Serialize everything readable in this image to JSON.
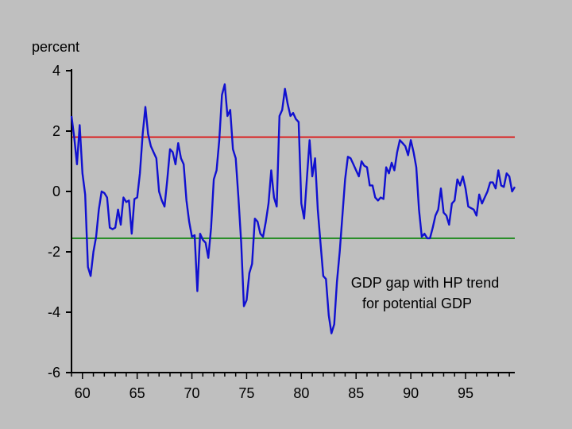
{
  "chart_data": {
    "type": "line",
    "ylabel": "percent",
    "xlim": [
      1959,
      1999.5
    ],
    "ylim": [
      -6,
      4
    ],
    "yticks": [
      4,
      2,
      0,
      -2,
      -4,
      -6
    ],
    "yticklabels": [
      "4",
      "2",
      "0",
      "-2",
      "-4",
      "-6"
    ],
    "xticks": [
      1960,
      1965,
      1970,
      1975,
      1980,
      1985,
      1990,
      1995
    ],
    "xticklabels": [
      "60",
      "65",
      "70",
      "75",
      "80",
      "85",
      "90",
      "95"
    ],
    "annotation": [
      "GDP gap with HP trend",
      "for potential GDP"
    ],
    "reference_lines": [
      {
        "y": 1.8,
        "color": "#e00000"
      },
      {
        "y": -1.55,
        "color": "#008000"
      }
    ],
    "series": [
      {
        "color": "#1010d0",
        "points": [
          [
            1959.0,
            2.5
          ],
          [
            1959.25,
            1.8
          ],
          [
            1959.5,
            0.9
          ],
          [
            1959.75,
            2.2
          ],
          [
            1960.0,
            0.6
          ],
          [
            1960.25,
            -0.1
          ],
          [
            1960.5,
            -2.5
          ],
          [
            1960.75,
            -2.8
          ],
          [
            1961.0,
            -2.0
          ],
          [
            1961.25,
            -1.5
          ],
          [
            1961.5,
            -0.6
          ],
          [
            1961.75,
            0.0
          ],
          [
            1962.0,
            -0.05
          ],
          [
            1962.25,
            -0.2
          ],
          [
            1962.5,
            -1.2
          ],
          [
            1962.75,
            -1.25
          ],
          [
            1963.0,
            -1.2
          ],
          [
            1963.25,
            -0.6
          ],
          [
            1963.5,
            -1.1
          ],
          [
            1963.75,
            -0.2
          ],
          [
            1964.0,
            -0.35
          ],
          [
            1964.25,
            -0.3
          ],
          [
            1964.5,
            -1.4
          ],
          [
            1964.75,
            -0.25
          ],
          [
            1965.0,
            -0.2
          ],
          [
            1965.25,
            0.6
          ],
          [
            1965.5,
            1.9
          ],
          [
            1965.75,
            2.8
          ],
          [
            1966.0,
            1.9
          ],
          [
            1966.25,
            1.5
          ],
          [
            1966.5,
            1.3
          ],
          [
            1966.75,
            1.1
          ],
          [
            1967.0,
            0.0
          ],
          [
            1967.25,
            -0.3
          ],
          [
            1967.5,
            -0.5
          ],
          [
            1967.75,
            0.4
          ],
          [
            1968.0,
            1.4
          ],
          [
            1968.25,
            1.3
          ],
          [
            1968.5,
            0.9
          ],
          [
            1968.75,
            1.6
          ],
          [
            1969.0,
            1.1
          ],
          [
            1969.25,
            0.9
          ],
          [
            1969.5,
            -0.3
          ],
          [
            1969.75,
            -1.0
          ],
          [
            1970.0,
            -1.5
          ],
          [
            1970.25,
            -1.45
          ],
          [
            1970.5,
            -3.3
          ],
          [
            1970.75,
            -1.4
          ],
          [
            1971.0,
            -1.6
          ],
          [
            1971.25,
            -1.7
          ],
          [
            1971.5,
            -2.2
          ],
          [
            1971.75,
            -1.2
          ],
          [
            1972.0,
            0.4
          ],
          [
            1972.25,
            0.7
          ],
          [
            1972.5,
            1.7
          ],
          [
            1972.75,
            3.2
          ],
          [
            1973.0,
            3.55
          ],
          [
            1973.25,
            2.5
          ],
          [
            1973.5,
            2.7
          ],
          [
            1973.75,
            1.4
          ],
          [
            1974.0,
            1.1
          ],
          [
            1974.25,
            -0.2
          ],
          [
            1974.5,
            -1.7
          ],
          [
            1974.75,
            -3.8
          ],
          [
            1975.0,
            -3.6
          ],
          [
            1975.25,
            -2.7
          ],
          [
            1975.5,
            -2.4
          ],
          [
            1975.75,
            -0.9
          ],
          [
            1976.0,
            -1.0
          ],
          [
            1976.25,
            -1.4
          ],
          [
            1976.5,
            -1.5
          ],
          [
            1976.75,
            -1.0
          ],
          [
            1977.0,
            -0.4
          ],
          [
            1977.25,
            0.7
          ],
          [
            1977.5,
            -0.2
          ],
          [
            1977.75,
            -0.5
          ],
          [
            1978.0,
            2.5
          ],
          [
            1978.25,
            2.7
          ],
          [
            1978.5,
            3.4
          ],
          [
            1978.75,
            2.9
          ],
          [
            1979.0,
            2.5
          ],
          [
            1979.25,
            2.6
          ],
          [
            1979.5,
            2.4
          ],
          [
            1979.75,
            2.3
          ],
          [
            1980.0,
            -0.4
          ],
          [
            1980.25,
            -0.9
          ],
          [
            1980.5,
            0.4
          ],
          [
            1980.75,
            1.7
          ],
          [
            1981.0,
            0.5
          ],
          [
            1981.25,
            1.1
          ],
          [
            1981.5,
            -0.6
          ],
          [
            1981.75,
            -1.7
          ],
          [
            1982.0,
            -2.8
          ],
          [
            1982.25,
            -2.9
          ],
          [
            1982.5,
            -4.1
          ],
          [
            1982.75,
            -4.7
          ],
          [
            1983.0,
            -4.4
          ],
          [
            1983.25,
            -3.0
          ],
          [
            1983.5,
            -2.0
          ],
          [
            1983.75,
            -0.8
          ],
          [
            1984.0,
            0.4
          ],
          [
            1984.25,
            1.15
          ],
          [
            1984.5,
            1.1
          ],
          [
            1984.75,
            0.9
          ],
          [
            1985.0,
            0.7
          ],
          [
            1985.25,
            0.5
          ],
          [
            1985.5,
            1.0
          ],
          [
            1985.75,
            0.85
          ],
          [
            1986.0,
            0.8
          ],
          [
            1986.25,
            0.2
          ],
          [
            1986.5,
            0.2
          ],
          [
            1986.75,
            -0.2
          ],
          [
            1987.0,
            -0.3
          ],
          [
            1987.25,
            -0.2
          ],
          [
            1987.5,
            -0.25
          ],
          [
            1987.75,
            0.8
          ],
          [
            1988.0,
            0.6
          ],
          [
            1988.25,
            0.95
          ],
          [
            1988.5,
            0.7
          ],
          [
            1988.75,
            1.3
          ],
          [
            1989.0,
            1.7
          ],
          [
            1989.25,
            1.6
          ],
          [
            1989.5,
            1.5
          ],
          [
            1989.75,
            1.2
          ],
          [
            1990.0,
            1.7
          ],
          [
            1990.25,
            1.3
          ],
          [
            1990.5,
            0.8
          ],
          [
            1990.75,
            -0.6
          ],
          [
            1991.0,
            -1.5
          ],
          [
            1991.25,
            -1.4
          ],
          [
            1991.5,
            -1.55
          ],
          [
            1991.75,
            -1.55
          ],
          [
            1992.0,
            -1.2
          ],
          [
            1992.25,
            -0.8
          ],
          [
            1992.5,
            -0.6
          ],
          [
            1992.75,
            0.1
          ],
          [
            1993.0,
            -0.7
          ],
          [
            1993.25,
            -0.8
          ],
          [
            1993.5,
            -1.1
          ],
          [
            1993.75,
            -0.4
          ],
          [
            1994.0,
            -0.3
          ],
          [
            1994.25,
            0.4
          ],
          [
            1994.5,
            0.2
          ],
          [
            1994.75,
            0.5
          ],
          [
            1995.0,
            0.1
          ],
          [
            1995.25,
            -0.5
          ],
          [
            1995.5,
            -0.55
          ],
          [
            1995.75,
            -0.6
          ],
          [
            1996.0,
            -0.8
          ],
          [
            1996.25,
            -0.1
          ],
          [
            1996.5,
            -0.4
          ],
          [
            1996.75,
            -0.2
          ],
          [
            1997.0,
            0.0
          ],
          [
            1997.25,
            0.3
          ],
          [
            1997.5,
            0.3
          ],
          [
            1997.75,
            0.1
          ],
          [
            1998.0,
            0.7
          ],
          [
            1998.25,
            0.2
          ],
          [
            1998.5,
            0.15
          ],
          [
            1998.75,
            0.6
          ],
          [
            1999.0,
            0.5
          ],
          [
            1999.25,
            0.0
          ],
          [
            1999.5,
            0.15
          ]
        ]
      }
    ]
  }
}
